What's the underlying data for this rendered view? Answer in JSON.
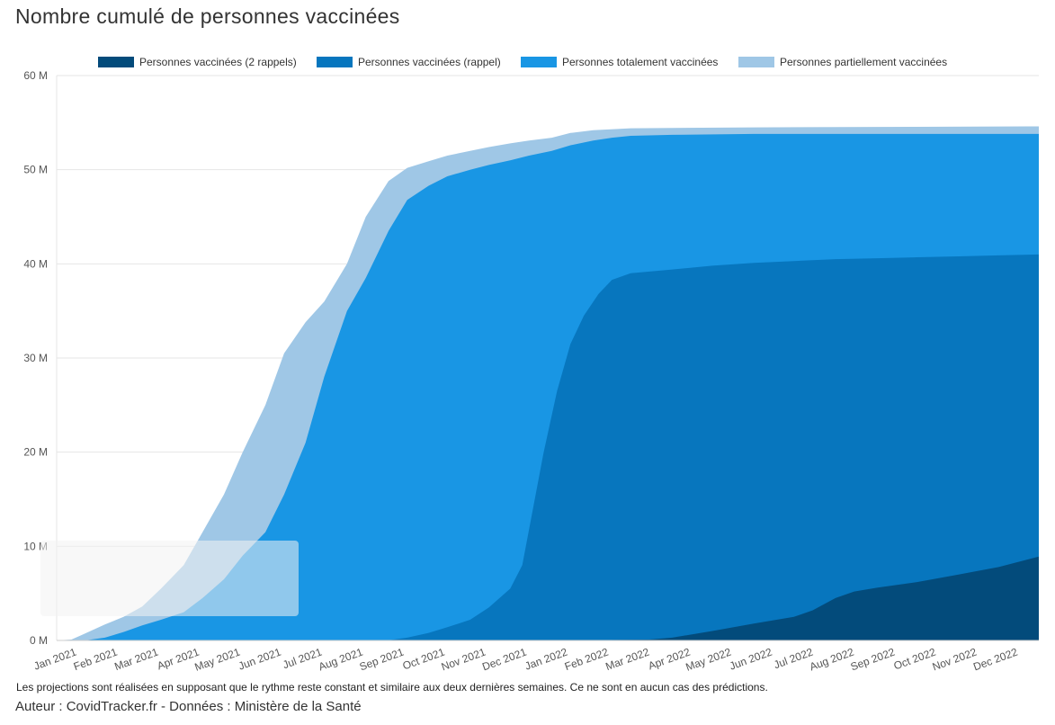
{
  "colors": {
    "rappel2": "#034b7b",
    "rappel": "#0776be",
    "total": "#1996e4",
    "partiel": "#9fc7e6",
    "grid": "#e6e6e6",
    "tooltip": "#f2f2f2"
  },
  "chart_data": {
    "type": "area",
    "title": "Nombre cumulé de personnes vaccinées",
    "stacked": false,
    "ylim": [
      0,
      60
    ],
    "y_ticks": [
      {
        "value": 0,
        "label": "0 M"
      },
      {
        "value": 10,
        "label": "10 M"
      },
      {
        "value": 20,
        "label": "20 M"
      },
      {
        "value": 30,
        "label": "30 M"
      },
      {
        "value": 40,
        "label": "40 M"
      },
      {
        "value": 50,
        "label": "50 M"
      },
      {
        "value": 60,
        "label": "60 M"
      }
    ],
    "x_ticks": [
      "Jan 2021",
      "Feb 2021",
      "Mar 2021",
      "Apr 2021",
      "May 2021",
      "Jun 2021",
      "Jul 2021",
      "Aug 2021",
      "Sep 2021",
      "Oct 2021",
      "Nov 2021",
      "Dec 2021",
      "Jan 2022",
      "Feb 2022",
      "Mar 2022",
      "Apr 2022",
      "May 2022",
      "Jun 2022",
      "Jul 2022",
      "Aug 2022",
      "Sep 2022",
      "Oct 2022",
      "Nov 2022",
      "Dec 2022"
    ],
    "x_range": [
      "2020-12-27",
      "2022-12-31"
    ],
    "legend_position": "top-center",
    "series": [
      {
        "name": "Personnes vaccinées (2 rappels)",
        "color_key": "rappel2",
        "points": [
          [
            "2022-01-15",
            0
          ],
          [
            "2022-03-15",
            0.1
          ],
          [
            "2022-04-01",
            0.3
          ],
          [
            "2022-05-01",
            1.0
          ],
          [
            "2022-06-01",
            1.8
          ],
          [
            "2022-07-01",
            2.5
          ],
          [
            "2022-07-15",
            3.2
          ],
          [
            "2022-08-01",
            4.5
          ],
          [
            "2022-08-15",
            5.2
          ],
          [
            "2022-09-01",
            5.6
          ],
          [
            "2022-10-01",
            6.2
          ],
          [
            "2022-11-01",
            7.0
          ],
          [
            "2022-12-01",
            7.8
          ],
          [
            "2022-12-31",
            8.9
          ]
        ]
      },
      {
        "name": "Personnes vaccinées (rappel)",
        "color_key": "rappel",
        "points": [
          [
            "2021-08-31",
            0
          ],
          [
            "2021-09-15",
            0.3
          ],
          [
            "2021-10-01",
            0.8
          ],
          [
            "2021-10-15",
            1.4
          ],
          [
            "2021-11-01",
            2.2
          ],
          [
            "2021-11-15",
            3.5
          ],
          [
            "2021-12-01",
            5.5
          ],
          [
            "2021-12-10",
            8.0
          ],
          [
            "2021-12-18",
            14.0
          ],
          [
            "2021-12-26",
            20.0
          ],
          [
            "2022-01-05",
            26.5
          ],
          [
            "2022-01-15",
            31.5
          ],
          [
            "2022-01-25",
            34.5
          ],
          [
            "2022-02-05",
            36.8
          ],
          [
            "2022-02-15",
            38.3
          ],
          [
            "2022-03-01",
            39.0
          ],
          [
            "2022-04-01",
            39.4
          ],
          [
            "2022-05-01",
            39.8
          ],
          [
            "2022-06-01",
            40.1
          ],
          [
            "2022-07-01",
            40.3
          ],
          [
            "2022-08-01",
            40.5
          ],
          [
            "2022-09-01",
            40.6
          ],
          [
            "2022-10-01",
            40.7
          ],
          [
            "2022-11-01",
            40.8
          ],
          [
            "2022-12-01",
            40.9
          ],
          [
            "2022-12-31",
            41.0
          ]
        ]
      },
      {
        "name": "Personnes totalement vaccinées",
        "color_key": "total",
        "points": [
          [
            "2021-01-17",
            0
          ],
          [
            "2021-02-01",
            0.3
          ],
          [
            "2021-02-15",
            0.9
          ],
          [
            "2021-03-01",
            1.6
          ],
          [
            "2021-03-15",
            2.2
          ],
          [
            "2021-04-01",
            3.0
          ],
          [
            "2021-04-15",
            4.5
          ],
          [
            "2021-05-01",
            6.5
          ],
          [
            "2021-05-15",
            9.0
          ],
          [
            "2021-06-01",
            11.5
          ],
          [
            "2021-06-15",
            15.5
          ],
          [
            "2021-07-01",
            21.0
          ],
          [
            "2021-07-15",
            28.0
          ],
          [
            "2021-08-01",
            35.0
          ],
          [
            "2021-08-15",
            38.5
          ],
          [
            "2021-09-01",
            43.5
          ],
          [
            "2021-09-15",
            46.8
          ],
          [
            "2021-10-01",
            48.3
          ],
          [
            "2021-10-15",
            49.3
          ],
          [
            "2021-11-01",
            50.0
          ],
          [
            "2021-11-15",
            50.5
          ],
          [
            "2021-12-01",
            51.0
          ],
          [
            "2021-12-15",
            51.5
          ],
          [
            "2022-01-01",
            52.0
          ],
          [
            "2022-01-15",
            52.6
          ],
          [
            "2022-02-01",
            53.1
          ],
          [
            "2022-02-15",
            53.4
          ],
          [
            "2022-03-01",
            53.6
          ],
          [
            "2022-04-01",
            53.7
          ],
          [
            "2022-06-01",
            53.8
          ],
          [
            "2022-12-31",
            53.8
          ]
        ]
      },
      {
        "name": "Personnes partiellement vaccinées",
        "color_key": "partiel",
        "points": [
          [
            "2020-12-27",
            0
          ],
          [
            "2021-01-07",
            0.1
          ],
          [
            "2021-01-15",
            0.6
          ],
          [
            "2021-02-01",
            1.7
          ],
          [
            "2021-02-15",
            2.5
          ],
          [
            "2021-03-01",
            3.6
          ],
          [
            "2021-03-15",
            5.5
          ],
          [
            "2021-04-01",
            8.0
          ],
          [
            "2021-04-15",
            11.5
          ],
          [
            "2021-05-01",
            15.5
          ],
          [
            "2021-05-15",
            20.0
          ],
          [
            "2021-06-01",
            25.0
          ],
          [
            "2021-06-15",
            30.5
          ],
          [
            "2021-07-01",
            33.8
          ],
          [
            "2021-07-15",
            36.0
          ],
          [
            "2021-08-01",
            40.0
          ],
          [
            "2021-08-15",
            45.0
          ],
          [
            "2021-09-01",
            48.8
          ],
          [
            "2021-09-15",
            50.2
          ],
          [
            "2021-10-01",
            50.9
          ],
          [
            "2021-10-15",
            51.5
          ],
          [
            "2021-11-01",
            52.0
          ],
          [
            "2021-11-15",
            52.4
          ],
          [
            "2021-12-01",
            52.8
          ],
          [
            "2021-12-15",
            53.1
          ],
          [
            "2022-01-01",
            53.4
          ],
          [
            "2022-01-15",
            53.9
          ],
          [
            "2022-02-01",
            54.2
          ],
          [
            "2022-03-01",
            54.4
          ],
          [
            "2022-06-01",
            54.5
          ],
          [
            "2022-12-31",
            54.6
          ]
        ]
      }
    ]
  },
  "footnote": "Les projections sont réalisées en supposant que le rythme reste constant et similaire aux deux dernières semaines. Ce ne sont en aucun cas des prédictions.",
  "author": "Auteur : CovidTracker.fr - Données : Ministère de la Santé"
}
